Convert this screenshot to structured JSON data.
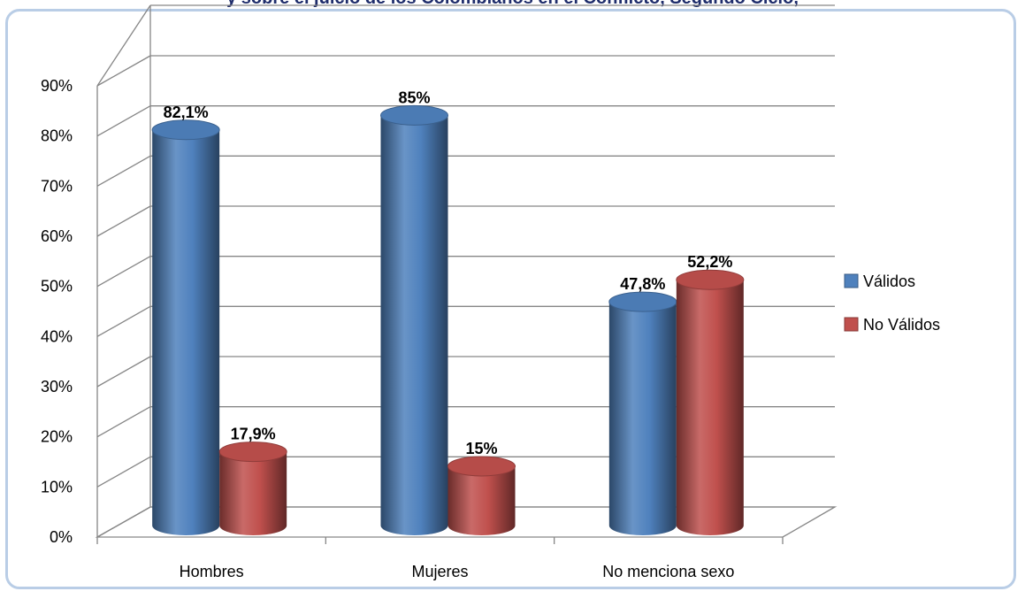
{
  "cut_title": "y sobre el juicio de los Colombianos en el Conflicto, Segundo Ciclo,",
  "chart_data": {
    "type": "bar",
    "title": "",
    "xlabel": "",
    "ylabel": "",
    "ylim": [
      0,
      90
    ],
    "ytick_step": 10,
    "ytick_format": "percent",
    "grid": true,
    "legend_position": "right",
    "categories": [
      "Hombres",
      "Mujeres",
      "No menciona sexo"
    ],
    "series": [
      {
        "name": "Válidos",
        "color": "#4f81bd",
        "values": [
          82.1,
          85,
          47.8
        ],
        "labels": [
          "82,1%",
          "85%",
          "47,8%"
        ]
      },
      {
        "name": "No Válidos",
        "color": "#c0504d",
        "values": [
          17.9,
          15,
          52.2
        ],
        "labels": [
          "17,9%",
          "15%",
          "52,2%"
        ]
      }
    ]
  }
}
